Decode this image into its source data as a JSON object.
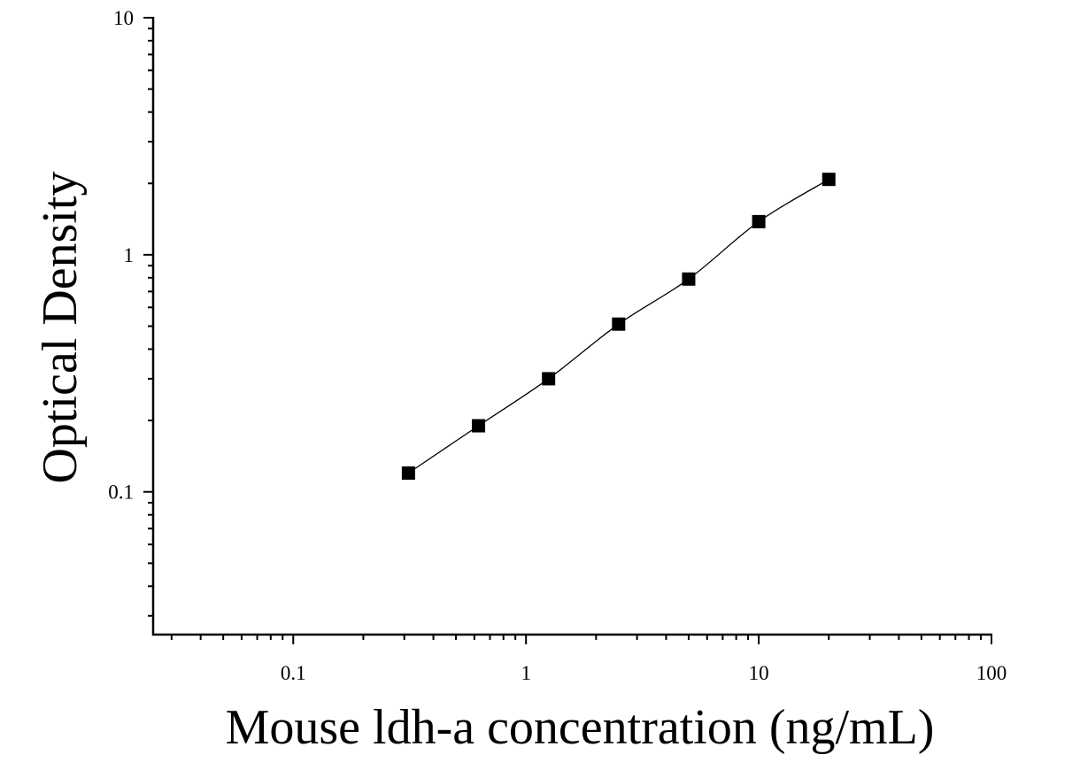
{
  "chart_data": {
    "type": "scatter",
    "title": "",
    "xlabel": "Mouse ldh-a concentration (ng/mL)",
    "ylabel": "Optical Density",
    "x_scale": "log",
    "y_scale": "log",
    "xlim": [
      0.025,
      100
    ],
    "ylim": [
      0.025,
      10
    ],
    "x_ticks": [
      {
        "value": 0.1,
        "label": "0.1"
      },
      {
        "value": 1,
        "label": "1"
      },
      {
        "value": 10,
        "label": "10"
      },
      {
        "value": 100,
        "label": "100"
      }
    ],
    "y_ticks": [
      {
        "value": 0.1,
        "label": "0.1"
      },
      {
        "value": 1,
        "label": "1"
      },
      {
        "value": 10,
        "label": "10"
      }
    ],
    "grid": false,
    "legend": "none",
    "marker": "square",
    "color": "#000000",
    "series": [
      {
        "x": [
          0.3125,
          0.625,
          1.25,
          2.5,
          5,
          10,
          20
        ],
        "y": [
          0.12,
          0.19,
          0.3,
          0.51,
          0.79,
          1.38,
          2.08
        ],
        "fit_line": true
      }
    ]
  }
}
